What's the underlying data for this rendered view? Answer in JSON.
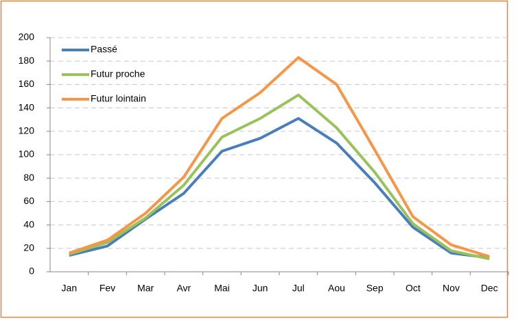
{
  "chart_data": {
    "type": "line",
    "categories": [
      "Jan",
      "Fev",
      "Mar",
      "Avr",
      "Mai",
      "Jun",
      "Jul",
      "Aou",
      "Sep",
      "Oct",
      "Nov",
      "Dec"
    ],
    "series": [
      {
        "name": "Passé",
        "color": "#4a7ebb",
        "values": [
          14,
          22,
          45,
          67,
          103,
          114,
          131,
          110,
          76,
          38,
          16,
          12
        ]
      },
      {
        "name": "Futur proche",
        "color": "#98c35a",
        "values": [
          15,
          25,
          46,
          74,
          115,
          131,
          151,
          123,
          85,
          41,
          18,
          11
        ]
      },
      {
        "name": "Futur lointain",
        "color": "#f79646",
        "values": [
          16,
          27,
          50,
          81,
          131,
          153,
          183,
          160,
          104,
          47,
          23,
          13
        ]
      }
    ],
    "ylim": [
      0,
      200
    ],
    "yticks": [
      0,
      20,
      40,
      60,
      80,
      100,
      120,
      140,
      160,
      180,
      200
    ],
    "grid": true,
    "legend": "upper left"
  }
}
